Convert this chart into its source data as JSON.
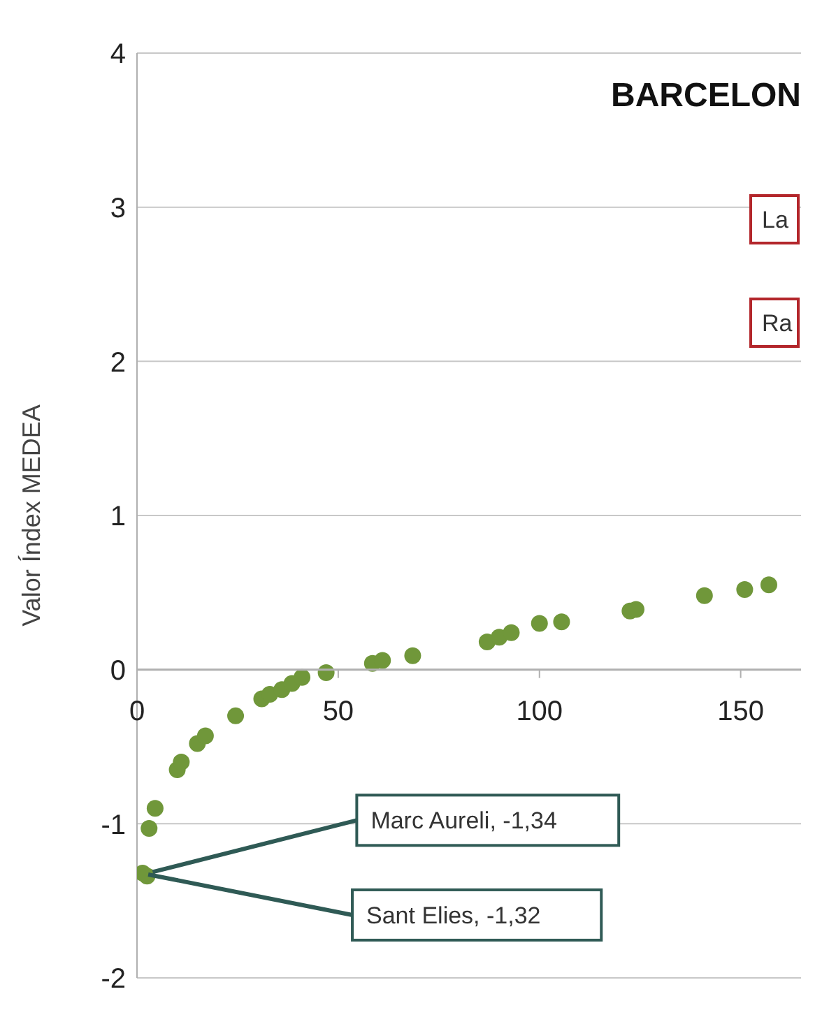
{
  "chart_data": {
    "type": "scatter",
    "title": "BARCELON",
    "ylabel": "Valor Índex MEDEA",
    "x": [
      1.4,
      2.5,
      3,
      4.5,
      10,
      11,
      15,
      17,
      24.5,
      31,
      33,
      36,
      38.5,
      41,
      47,
      58.5,
      61,
      68.5,
      87,
      90,
      93,
      100,
      105.5,
      122.5,
      124,
      141,
      151,
      157
    ],
    "series": [
      {
        "color": "#70973a",
        "values": [
          -1.32,
          -1.34,
          -1.03,
          -0.9,
          -0.65,
          -0.6,
          -0.48,
          -0.43,
          -0.3,
          -0.19,
          -0.16,
          -0.13,
          -0.09,
          -0.05,
          -0.02,
          0.04,
          0.06,
          0.09,
          0.18,
          0.21,
          0.24,
          0.3,
          0.31,
          0.38,
          0.39,
          0.48,
          0.52,
          0.55
        ]
      }
    ],
    "xlim": [
      0,
      165
    ],
    "xticks": [
      0,
      50,
      100,
      150
    ],
    "ylim": [
      -2,
      4
    ],
    "yticks": [
      -2,
      -1,
      0,
      1,
      2,
      3,
      4
    ],
    "grid": "y",
    "marker": "circle",
    "annotations": [
      {
        "text": "Marc Aureli, -1,34",
        "x": 2.5,
        "y": -1.34
      },
      {
        "text": "Sant Elies, -1,32",
        "x": 1.4,
        "y": -1.32
      },
      "La",
      "Ra"
    ]
  }
}
